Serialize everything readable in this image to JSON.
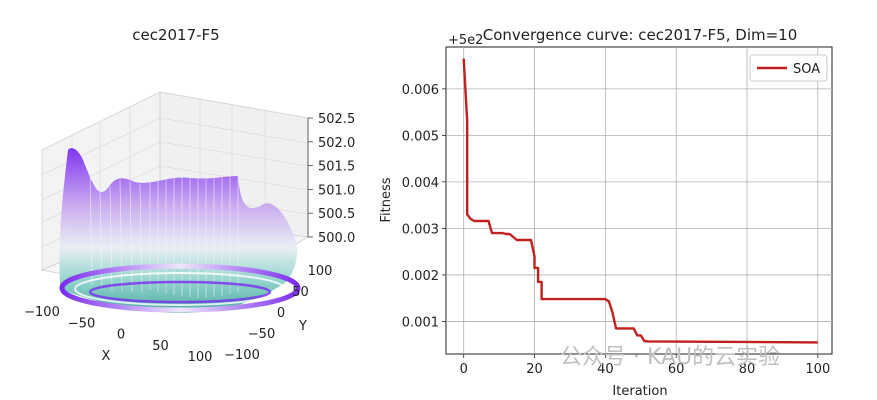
{
  "chart_data": [
    {
      "type": "surface",
      "title": "cec2017-F5",
      "xlabel": "X",
      "ylabel": "Y",
      "zlabel": "",
      "xlim": [
        -100,
        100
      ],
      "ylim": [
        -100,
        100
      ],
      "zlim": [
        500.0,
        502.5
      ],
      "x_ticks": [
        "−100",
        "−50",
        "0",
        "50",
        "100"
      ],
      "y_ticks": [
        "−100",
        "−50",
        "0",
        "50",
        "100"
      ],
      "z_ticks": [
        "500.0",
        "500.5",
        "501.0",
        "501.5",
        "502.0",
        "502.5"
      ],
      "colormap": [
        "#7b2cf0",
        "#b48be8",
        "#e6e0f5",
        "#a8dcd6",
        "#3aa89c"
      ]
    },
    {
      "type": "line",
      "title": "Convergence curve: cec2017-F5, Dim=10",
      "xlabel": "Iteration",
      "ylabel": "Fitness",
      "offset_text": "+5e2",
      "xlim": [
        -5,
        104
      ],
      "ylim": [
        0.0003,
        0.0069
      ],
      "x_ticks": [
        0,
        20,
        40,
        60,
        80,
        100
      ],
      "y_ticks": [
        0.001,
        0.002,
        0.003,
        0.004,
        0.005,
        0.006
      ],
      "y_tick_labels": [
        "0.001",
        "0.002",
        "0.003",
        "0.004",
        "0.005",
        "0.006"
      ],
      "grid": true,
      "legend_position": "top-right",
      "series": [
        {
          "name": "SOA",
          "color": "#c0201e",
          "x": [
            0,
            1,
            1,
            2,
            3,
            7,
            8,
            10,
            11,
            12,
            13,
            15,
            16,
            19,
            20,
            20,
            21,
            21,
            22,
            22,
            27,
            40,
            41,
            42,
            43,
            48,
            49,
            50,
            51,
            52,
            100
          ],
          "y": [
            0.00665,
            0.0053,
            0.0033,
            0.0032,
            0.00316,
            0.00316,
            0.0029,
            0.0029,
            0.0029,
            0.00288,
            0.00288,
            0.00275,
            0.00275,
            0.00275,
            0.0024,
            0.00215,
            0.00215,
            0.00185,
            0.00185,
            0.00148,
            0.00148,
            0.00148,
            0.00143,
            0.0012,
            0.00085,
            0.00085,
            0.0007,
            0.0007,
            0.00058,
            0.00057,
            0.00055
          ]
        }
      ]
    }
  ],
  "watermark": {
    "text": "公众号 · KAU的云实验"
  }
}
